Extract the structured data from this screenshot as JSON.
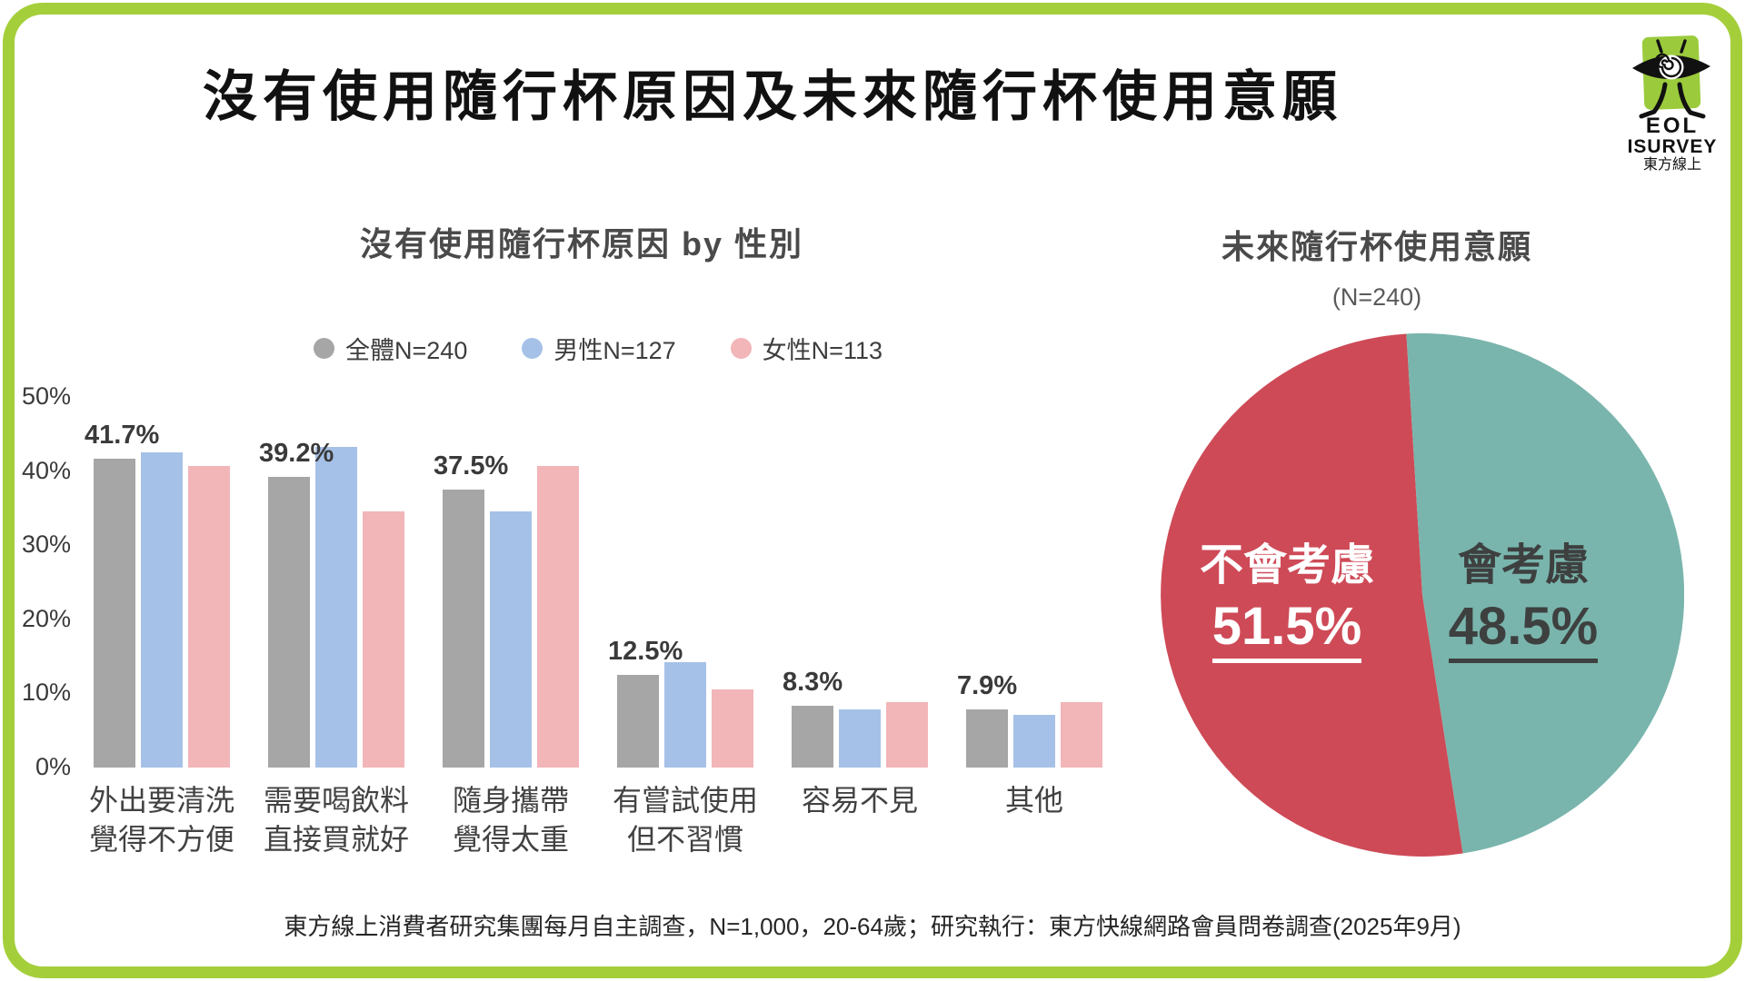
{
  "page": {
    "title": "沒有使用隨行杯原因及未來隨行杯使用意願",
    "footer": "東方線上消費者研究集團每月自主調查，N=1,000，20-64歲；研究執行：東方快線網路會員問卷調查(2025年9月)",
    "frame_color": "#A4CF3B"
  },
  "logo": {
    "line1": "EOL",
    "line2": "ISURVEY",
    "line3": "東方線上",
    "green": "#9BCB3C",
    "figure": "eye-with-legs-icon"
  },
  "chart_data": [
    {
      "type": "bar",
      "title": "沒有使用隨行杯原因 by 性別",
      "categories": [
        [
          "外出要清洗",
          "覺得不方便"
        ],
        [
          "需要喝飲料",
          "直接買就好"
        ],
        [
          "隨身攜帶",
          "覺得太重"
        ],
        [
          "有嘗試使用",
          "但不習慣"
        ],
        [
          "容易不見"
        ],
        [
          "其他"
        ]
      ],
      "series": [
        {
          "name": "全體N=240",
          "color": "#A6A6A6",
          "values": [
            41.7,
            39.2,
            37.5,
            12.5,
            8.3,
            7.9
          ]
        },
        {
          "name": "男性N=127",
          "color": "#A6C1E7",
          "values": [
            42.5,
            43.3,
            34.6,
            14.2,
            7.9,
            7.1
          ]
        },
        {
          "name": "女性N=113",
          "color": "#F2B5B8",
          "values": [
            40.7,
            34.5,
            40.7,
            10.6,
            8.8,
            8.8
          ]
        }
      ],
      "value_labels": [
        "41.7%",
        "39.2%",
        "37.5%",
        "12.5%",
        "8.3%",
        "7.9%"
      ],
      "value_labels_series": "全體N=240",
      "ylim": [
        0,
        50
      ],
      "yticks": [
        "0%",
        "10%",
        "20%",
        "30%",
        "40%",
        "50%"
      ],
      "grid": false,
      "legend_position": "top"
    },
    {
      "type": "pie",
      "title": "未來隨行杯使用意願",
      "n_label": "(N=240)",
      "slices": [
        {
          "label": "不會考慮",
          "value": 51.5,
          "display": "51.5%",
          "color": "#CE4A57",
          "text_color": "#FFFFFF",
          "start_deg": 171.1
        },
        {
          "label": "會考慮",
          "value": 48.5,
          "display": "48.5%",
          "color": "#79B5AC",
          "text_color": "#3E4040",
          "start_deg": -3.5
        }
      ],
      "legend_position": "none"
    }
  ]
}
